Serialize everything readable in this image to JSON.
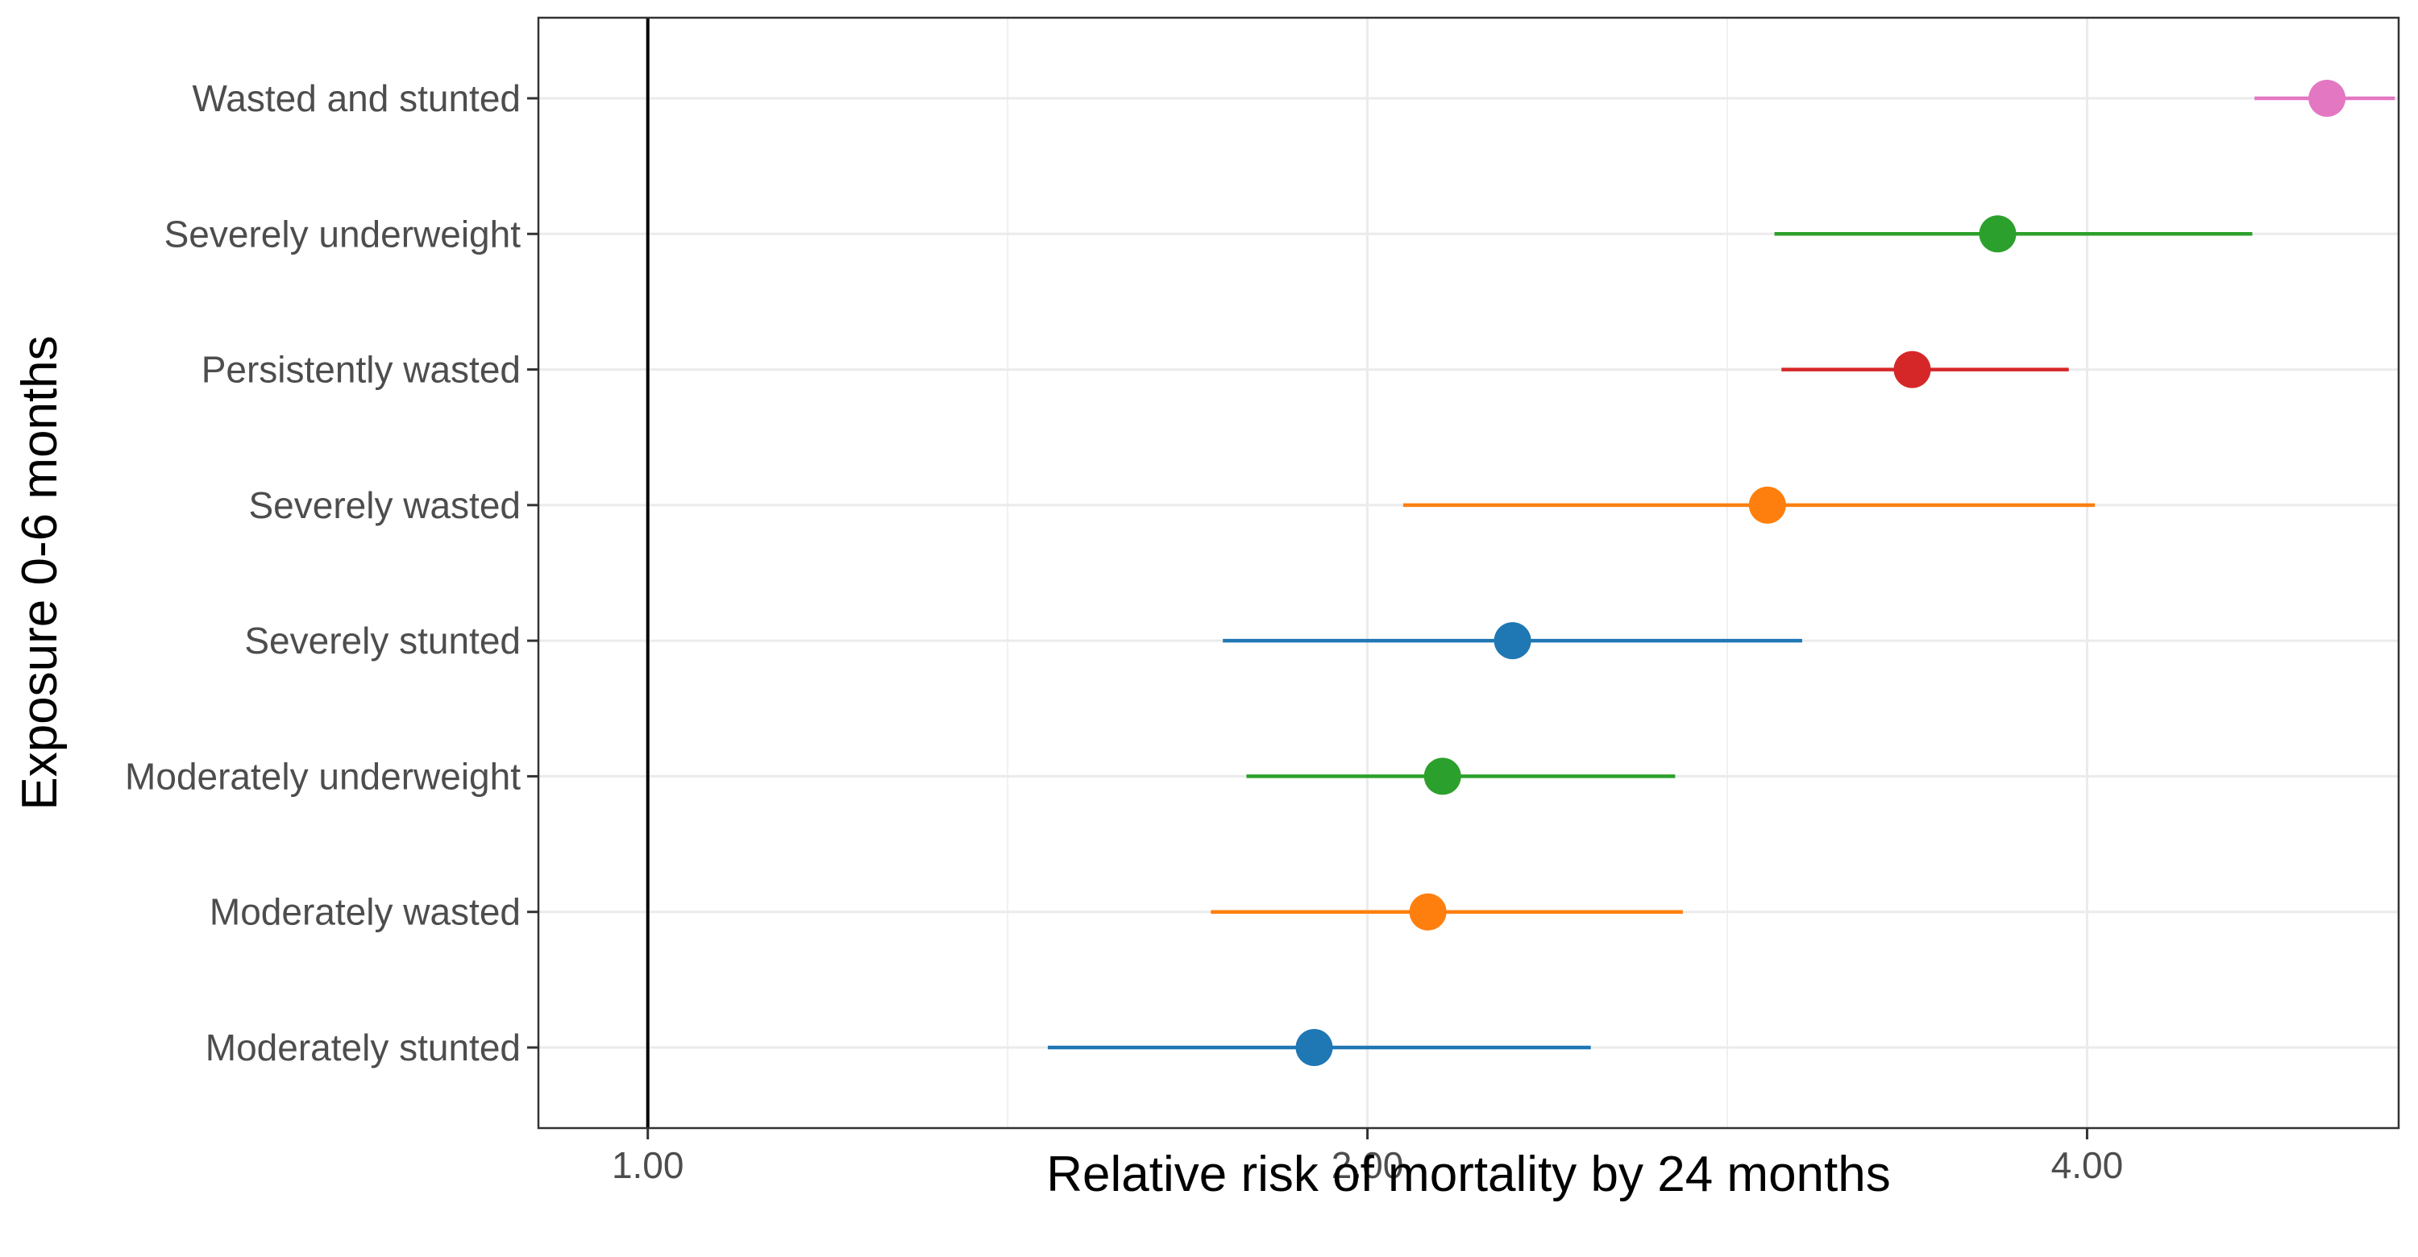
{
  "chart_data": {
    "type": "scatter",
    "subtype": "forest-plot",
    "xlabel": "Relative risk of mortality by 24 months",
    "ylabel": "Exposure 0-6 months",
    "x_scale": "log2",
    "xlim": [
      0.9,
      5.4
    ],
    "x_ticks": [
      1,
      2,
      4
    ],
    "x_tick_labels": [
      "1.00",
      "2.00",
      "4.00"
    ],
    "reference_line": 1,
    "grid": true,
    "legend": "none",
    "categories": [
      "Moderately stunted",
      "Moderately wasted",
      "Moderately underweight",
      "Severely stunted",
      "Severely wasted",
      "Persistently wasted",
      "Severely underweight",
      "Wasted and stunted"
    ],
    "points": [
      {
        "label": "Moderately stunted",
        "estimate": 1.9,
        "lower": 1.47,
        "upper": 2.48,
        "color": "#1f77b4"
      },
      {
        "label": "Moderately wasted",
        "estimate": 2.12,
        "lower": 1.72,
        "upper": 2.71,
        "color": "#ff7f0e"
      },
      {
        "label": "Moderately underweight",
        "estimate": 2.15,
        "lower": 1.78,
        "upper": 2.69,
        "color": "#2ca02c"
      },
      {
        "label": "Severely stunted",
        "estimate": 2.3,
        "lower": 1.74,
        "upper": 3.04,
        "color": "#1f77b4"
      },
      {
        "label": "Severely wasted",
        "estimate": 2.94,
        "lower": 2.07,
        "upper": 4.03,
        "color": "#ff7f0e"
      },
      {
        "label": "Persistently wasted",
        "estimate": 3.38,
        "lower": 2.98,
        "upper": 3.93,
        "color": "#d62728"
      },
      {
        "label": "Severely underweight",
        "estimate": 3.67,
        "lower": 2.96,
        "upper": 4.69,
        "color": "#2ca02c"
      },
      {
        "label": "Wasted and stunted",
        "estimate": 5.04,
        "lower": 4.7,
        "upper": 5.38,
        "color": "#e377c2"
      }
    ]
  }
}
